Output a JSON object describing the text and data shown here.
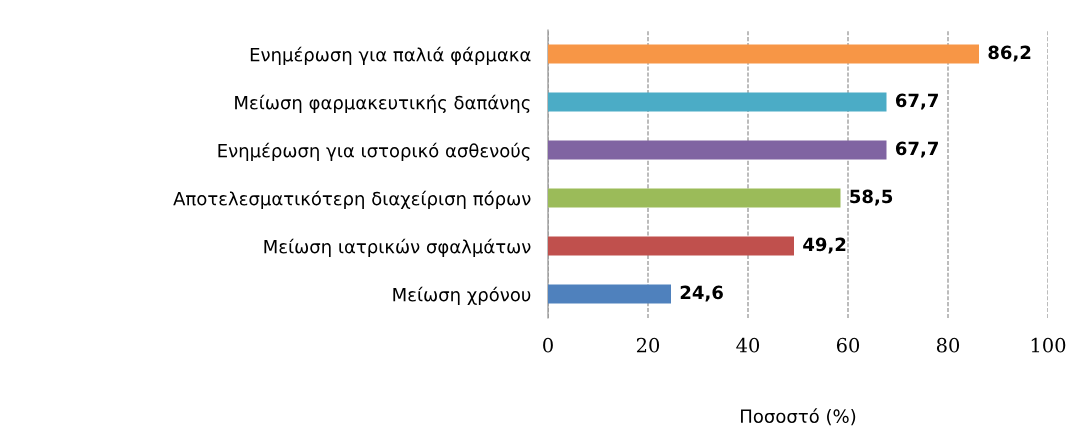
{
  "chart_data": {
    "type": "bar",
    "orientation": "horizontal",
    "xlabel": "Ποσοστό (%)",
    "categories": [
      "Ενημέρωση για παλιά φάρμακα",
      "Μείωση φαρμακευτικής δαπάνης",
      "Ενημέρωση για ιστορικό ασθενούς",
      "Αποτελεσματικότερη διαχείριση πόρων",
      "Μείωση ιατρικών σφαλμάτων",
      "Μείωση χρόνου"
    ],
    "values": [
      86.2,
      67.7,
      67.7,
      58.5,
      49.2,
      24.6
    ],
    "colors": [
      "#f79646",
      "#4bacc6",
      "#8064a2",
      "#9bbb59",
      "#c0504d",
      "#4f81bd"
    ],
    "value_labels": [
      "86,2",
      "67,7",
      "67,7",
      "58,5",
      "49,2",
      "24,6"
    ],
    "xlim": [
      0,
      100
    ],
    "xticks": [
      0,
      20,
      40,
      60,
      80,
      100
    ],
    "grid": "x"
  }
}
